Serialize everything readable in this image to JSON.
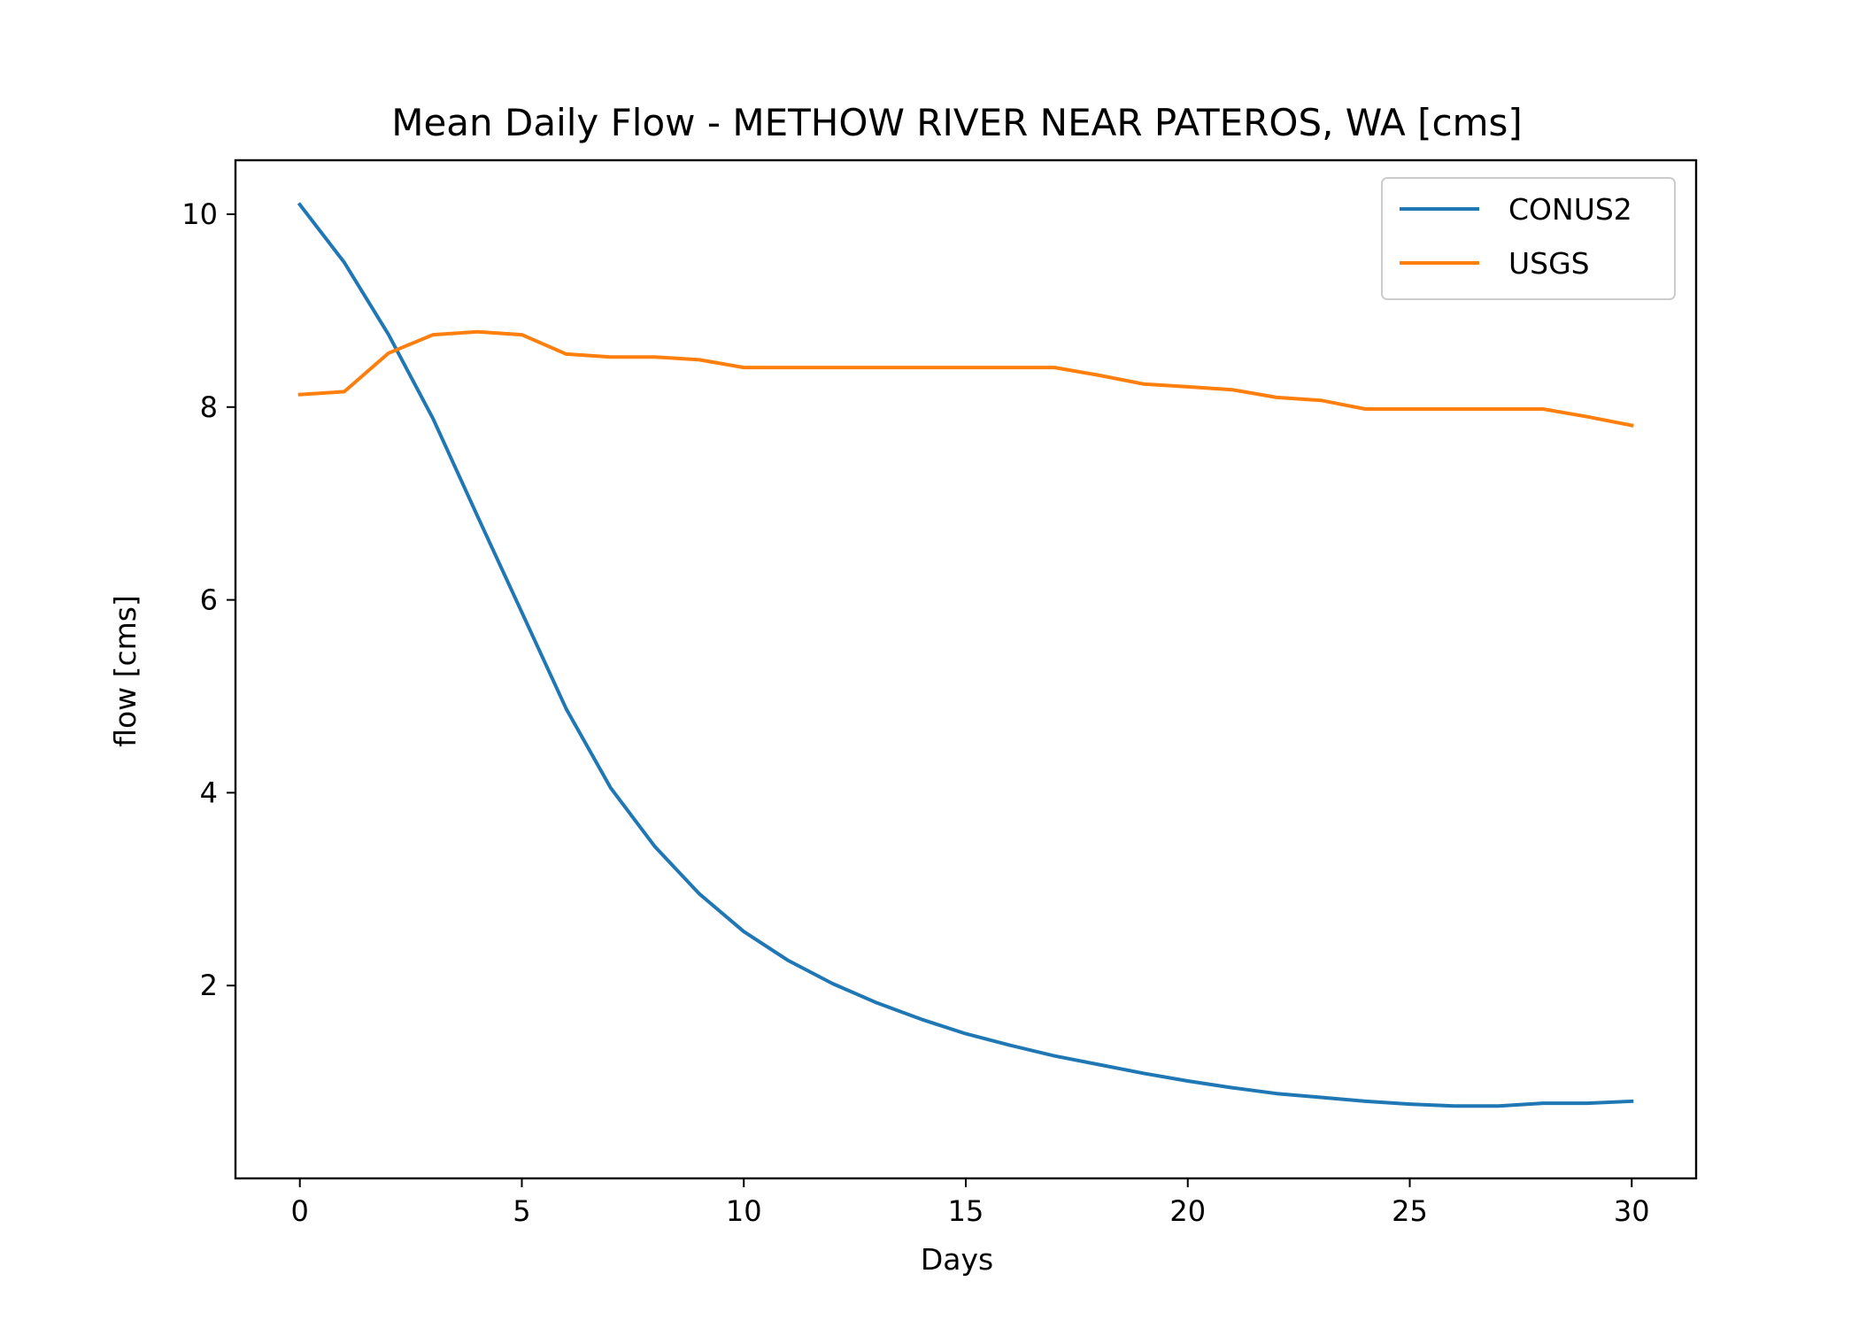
{
  "chart_data": {
    "type": "line",
    "title": "Mean Daily Flow - METHOW RIVER NEAR PATEROS, WA [cms]",
    "xlabel": "Days",
    "ylabel": "flow [cms]",
    "xlim": [
      -1.45,
      31.45
    ],
    "ylim": [
      0.0,
      10.56
    ],
    "xticks": [
      0,
      5,
      10,
      15,
      20,
      25,
      30
    ],
    "yticks": [
      2,
      4,
      6,
      8,
      10
    ],
    "grid": false,
    "legend_position": "top-right",
    "x": [
      0,
      1,
      2,
      3,
      4,
      5,
      6,
      7,
      8,
      9,
      10,
      11,
      12,
      13,
      14,
      15,
      16,
      17,
      18,
      19,
      20,
      21,
      22,
      23,
      24,
      25,
      26,
      27,
      28,
      29,
      30
    ],
    "series": [
      {
        "name": "CONUS2",
        "color": "#1f77b4",
        "values": [
          10.1,
          9.5,
          8.75,
          7.88,
          6.87,
          5.87,
          4.87,
          4.05,
          3.44,
          2.95,
          2.56,
          2.26,
          2.02,
          1.82,
          1.65,
          1.5,
          1.38,
          1.27,
          1.18,
          1.09,
          1.01,
          0.94,
          0.88,
          0.84,
          0.8,
          0.77,
          0.75,
          0.75,
          0.78,
          0.78,
          0.8
        ]
      },
      {
        "name": "USGS",
        "color": "#ff7f0e",
        "values": [
          8.13,
          8.16,
          8.56,
          8.75,
          8.78,
          8.75,
          8.55,
          8.52,
          8.52,
          8.49,
          8.41,
          8.41,
          8.41,
          8.41,
          8.41,
          8.41,
          8.41,
          8.41,
          8.33,
          8.24,
          8.21,
          8.18,
          8.1,
          8.07,
          7.98,
          7.98,
          7.98,
          7.98,
          7.98,
          7.9,
          7.81
        ]
      }
    ]
  }
}
